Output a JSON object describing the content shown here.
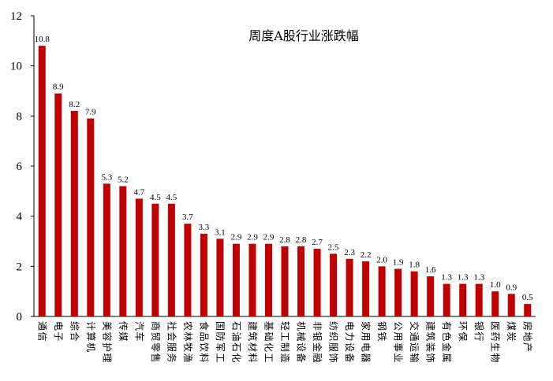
{
  "chart_data": {
    "type": "bar",
    "title": "周度A股行业涨跌幅",
    "categories": [
      "通信",
      "电子",
      "综合",
      "计算机",
      "美容护理",
      "传媒",
      "汽车",
      "商贸零售",
      "社会服务",
      "农林牧渔",
      "食品饮料",
      "国防军工",
      "石油石化",
      "建筑材料",
      "基础化工",
      "轻工制造",
      "机械设备",
      "非银金融",
      "纺织服饰",
      "电力设备",
      "家用电器",
      "钢铁",
      "公用事业",
      "交通运输",
      "建筑装饰",
      "有色金属",
      "环保",
      "银行",
      "医药生物",
      "煤炭",
      "房地产"
    ],
    "values": [
      10.8,
      8.9,
      8.2,
      7.9,
      5.3,
      5.2,
      4.7,
      4.5,
      4.5,
      3.7,
      3.3,
      3.1,
      2.9,
      2.9,
      2.9,
      2.8,
      2.8,
      2.7,
      2.5,
      2.3,
      2.2,
      2.0,
      1.9,
      1.8,
      1.6,
      1.3,
      1.3,
      1.3,
      1.0,
      0.9,
      0.5
    ],
    "data_labels": [
      "10.8",
      "8.9",
      "8.2",
      "7.9",
      "5.3",
      "5.2",
      "4.7",
      "4.5",
      "4.5",
      "3.7",
      "3.3",
      "3.1",
      "2.9",
      "2.9",
      "2.9",
      "2.8",
      "2.8",
      "2.7",
      "2.5",
      "2.3",
      "2.2",
      "2.0",
      "1.9",
      "1.8",
      "1.6",
      "1.3",
      "1.3",
      "1.3",
      "1.0",
      "0.9",
      "0.5"
    ],
    "ylim": [
      0,
      12
    ],
    "yticks": [
      0,
      2,
      4,
      6,
      8,
      10,
      12
    ],
    "bar_color": "#C00000",
    "axis_color": "#000000",
    "grid": false,
    "legend": "none"
  }
}
